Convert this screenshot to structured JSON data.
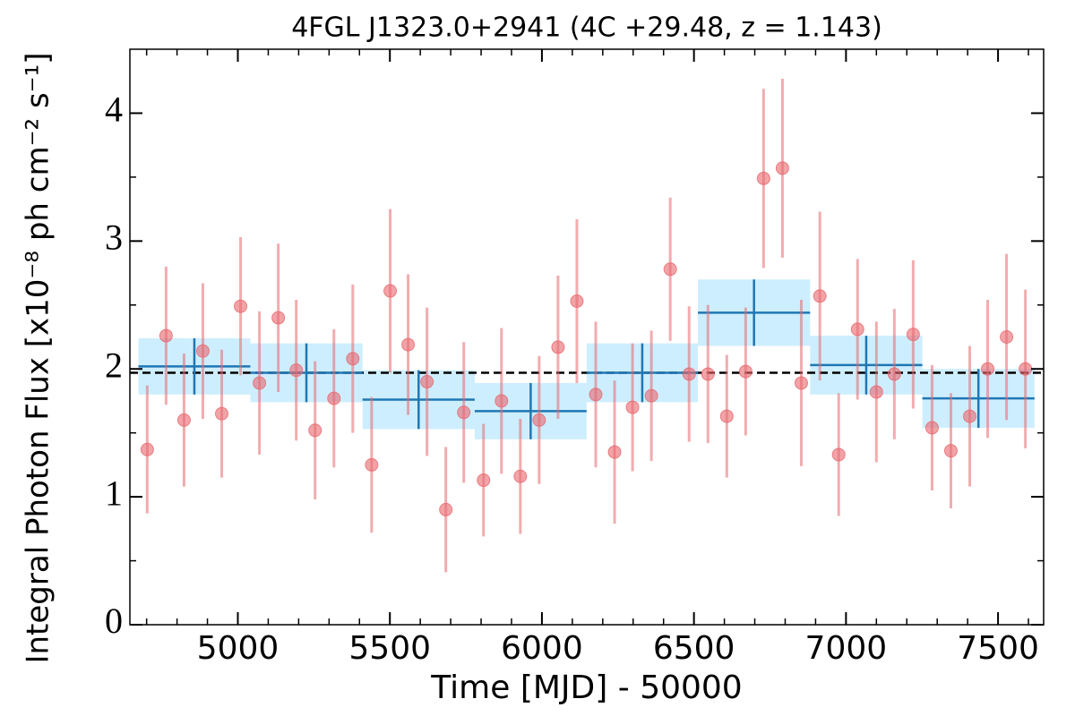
{
  "chart_data": {
    "type": "lightcurve",
    "title": "4FGL J1323.0+2941 (4C +29.48, z = 1.143)",
    "xlabel": "Time [MJD] - 50000",
    "ylabel": "Integral Photon Flux [x10⁻⁸ ph cm⁻² s⁻¹]",
    "xlim": [
      4645,
      7650
    ],
    "ylim": [
      0,
      4.5
    ],
    "xticks": [
      5000,
      5500,
      6000,
      6500,
      7000,
      7500
    ],
    "yticks": [
      0,
      1,
      2,
      3,
      4
    ],
    "xticks_minor": [
      4700,
      4800,
      4900,
      5100,
      5200,
      5300,
      5400,
      5600,
      5700,
      5800,
      5900,
      6100,
      6200,
      6300,
      6400,
      6600,
      6700,
      6800,
      6900,
      7100,
      7200,
      7300,
      7400,
      7600
    ],
    "yticks_minor": [
      0.5,
      1.5,
      2.5,
      3.5
    ],
    "series": [
      {
        "color": "#e8686e",
        "x": [
          4702,
          4764,
          4823,
          4885,
          4947,
          5009,
          5071,
          5133,
          5192,
          5254,
          5316,
          5378,
          5440,
          5501,
          5560,
          5622,
          5684,
          5743,
          5808,
          5867,
          5929,
          5991,
          6053,
          6115,
          6177,
          6239,
          6298,
          6360,
          6422,
          6484,
          6546,
          6608,
          6670,
          6729,
          6791,
          6853,
          6914,
          6976,
          7038,
          7100,
          7159,
          7221,
          7283,
          7345,
          7407,
          7466,
          7528,
          7590
        ],
        "values": [
          1.37,
          2.26,
          1.6,
          2.14,
          1.65,
          2.49,
          1.89,
          2.4,
          1.99,
          1.52,
          1.77,
          2.08,
          1.25,
          2.61,
          2.19,
          1.9,
          0.9,
          1.66,
          1.13,
          1.75,
          1.16,
          1.6,
          2.17,
          2.53,
          1.8,
          1.35,
          1.7,
          1.79,
          2.78,
          1.96,
          1.96,
          1.63,
          1.98,
          3.49,
          3.57,
          1.89,
          2.57,
          1.33,
          2.31,
          1.82,
          1.96,
          2.27,
          1.54,
          1.36,
          1.63,
          2.0,
          2.25,
          2.0
        ],
        "errors": [
          0.5,
          0.54,
          0.52,
          0.53,
          0.5,
          0.54,
          0.56,
          0.58,
          0.55,
          0.54,
          0.54,
          0.58,
          0.53,
          0.64,
          0.55,
          0.58,
          0.49,
          0.55,
          0.44,
          0.57,
          0.45,
          0.5,
          0.56,
          0.64,
          0.57,
          0.56,
          0.5,
          0.51,
          0.56,
          0.53,
          0.54,
          0.48,
          0.5,
          0.7,
          0.7,
          0.65,
          0.66,
          0.48,
          0.55,
          0.55,
          0.51,
          0.58,
          0.49,
          0.45,
          0.55,
          0.54,
          0.65,
          0.62
        ]
      }
    ],
    "bins": {
      "color": "#1f77b4",
      "fill": "#cdeefe",
      "edges": [
        4673,
        5041,
        5410,
        5779,
        6147,
        6513,
        6882,
        7251,
        7620
      ],
      "values": [
        2.02,
        1.97,
        1.76,
        1.67,
        1.97,
        2.44,
        2.03,
        1.77
      ],
      "errors": [
        0.22,
        0.23,
        0.23,
        0.22,
        0.23,
        0.26,
        0.23,
        0.23
      ]
    },
    "mean": 1.97
  }
}
